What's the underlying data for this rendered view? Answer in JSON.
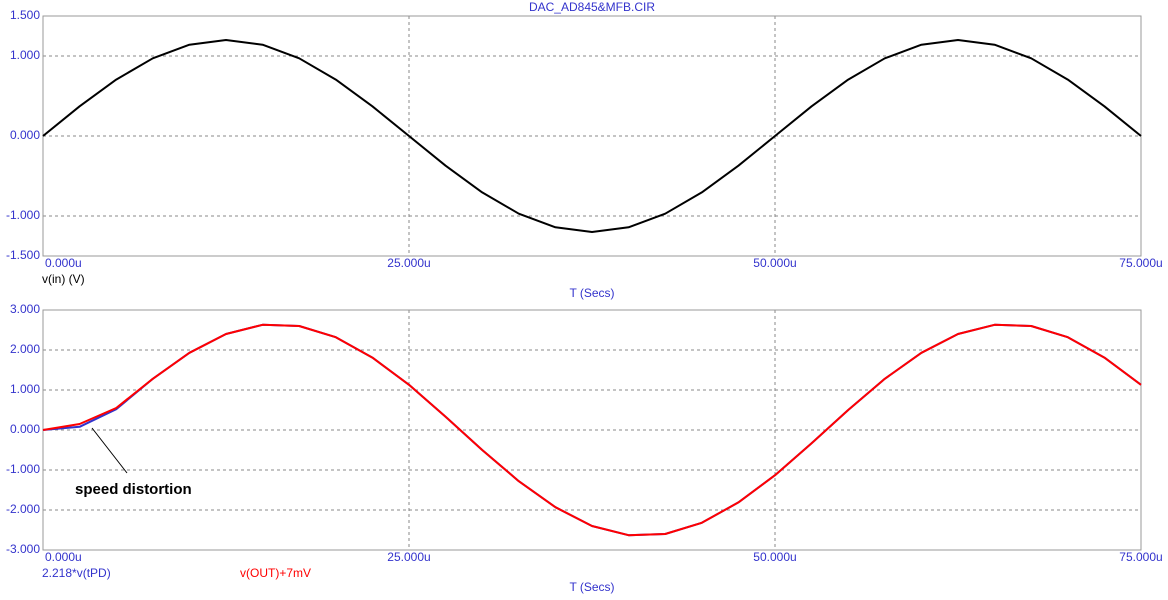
{
  "chart_data": [
    {
      "type": "line",
      "title": "DAC_AD845&MFB.CIR",
      "xlabel": "T (Secs)",
      "x": [
        0,
        2.5,
        5,
        7.5,
        10,
        12.5,
        15,
        17.5,
        20,
        22.5,
        25,
        27.5,
        30,
        32.5,
        35,
        37.5,
        40,
        42.5,
        45,
        47.5,
        50,
        52.5,
        55,
        57.5,
        60,
        62.5,
        65,
        67.5,
        70,
        72.5,
        75
      ],
      "xlim": [
        0,
        75
      ],
      "xticks": [
        {
          "value": 0,
          "label": "0.000u"
        },
        {
          "value": 25,
          "label": "25.000u"
        },
        {
          "value": 50,
          "label": "50.000u"
        },
        {
          "value": 75,
          "label": "75.000u"
        }
      ],
      "ylim": [
        -1.5,
        1.5
      ],
      "yticks": [
        {
          "value": 1.5,
          "label": "1.500"
        },
        {
          "value": 1,
          "label": "1.000"
        },
        {
          "value": 0,
          "label": "0.000"
        },
        {
          "value": -1,
          "label": "-1.000"
        },
        {
          "value": -1.5,
          "label": "-1.500"
        }
      ],
      "grid": true,
      "series": [
        {
          "name": "v(in) (V)",
          "color": "#000000",
          "values": [
            0,
            0.371,
            0.705,
            0.971,
            1.141,
            1.2,
            1.141,
            0.971,
            0.705,
            0.371,
            0,
            -0.371,
            -0.705,
            -0.971,
            -1.141,
            -1.2,
            -1.141,
            -0.971,
            -0.705,
            -0.371,
            0,
            0.371,
            0.705,
            0.971,
            1.141,
            1.2,
            1.141,
            0.971,
            0.705,
            0.371,
            0
          ]
        }
      ]
    },
    {
      "type": "line",
      "xlabel": "T (Secs)",
      "annotation": "speed distortion",
      "x": [
        0,
        2.5,
        5,
        7.5,
        10,
        12.5,
        15,
        17.5,
        20,
        22.5,
        25,
        27.5,
        30,
        32.5,
        35,
        37.5,
        40,
        42.5,
        45,
        47.5,
        50,
        52.5,
        55,
        57.5,
        60,
        62.5,
        65,
        67.5,
        70,
        72.5,
        75
      ],
      "xlim": [
        0,
        75
      ],
      "xticks": [
        {
          "value": 0,
          "label": "0.000u"
        },
        {
          "value": 25,
          "label": "25.000u"
        },
        {
          "value": 50,
          "label": "50.000u"
        },
        {
          "value": 75,
          "label": "75.000u"
        }
      ],
      "ylim": [
        -3,
        3
      ],
      "yticks": [
        {
          "value": 3,
          "label": "3.000"
        },
        {
          "value": 2,
          "label": "2.000"
        },
        {
          "value": 1,
          "label": "1.000"
        },
        {
          "value": 0,
          "label": "0.000"
        },
        {
          "value": -1,
          "label": "-1.000"
        },
        {
          "value": -2,
          "label": "-2.000"
        },
        {
          "value": -3,
          "label": "-3.000"
        }
      ],
      "grid": true,
      "series": [
        {
          "name": "2.218*v(tPD)",
          "color": "#3333cc",
          "values": [
            0,
            0.08,
            0.52,
            1.28,
            1.93,
            2.4,
            2.63,
            2.6,
            2.32,
            1.81,
            1.13,
            0.33,
            -0.5,
            -1.28,
            -1.93,
            -2.4,
            -2.63,
            -2.6,
            -2.32,
            -1.81,
            -1.13,
            -0.33,
            0.5,
            1.28,
            1.93,
            2.4,
            2.63,
            2.6,
            2.32,
            1.81,
            1.13
          ]
        },
        {
          "name": "v(OUT)+7mV",
          "color": "#ff0000",
          "values": [
            0,
            0.15,
            0.55,
            1.28,
            1.93,
            2.4,
            2.63,
            2.6,
            2.32,
            1.81,
            1.13,
            0.33,
            -0.5,
            -1.28,
            -1.93,
            -2.4,
            -2.63,
            -2.6,
            -2.32,
            -1.81,
            -1.13,
            -0.33,
            0.5,
            1.28,
            1.93,
            2.4,
            2.63,
            2.6,
            2.32,
            1.81,
            1.13
          ]
        }
      ]
    }
  ]
}
